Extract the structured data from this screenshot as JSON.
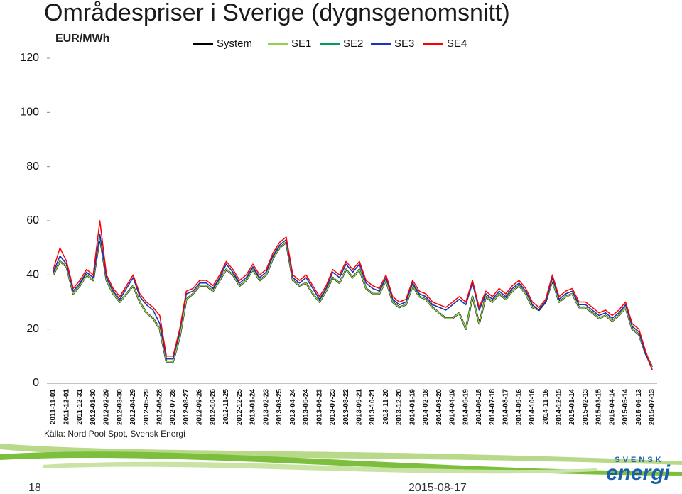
{
  "chart_data": {
    "type": "line",
    "title": "Områdespriser i Sverige (dygnsgenomsnitt)",
    "ylabel": "EUR/MWh",
    "legend": "top",
    "grid": false,
    "ylim": [
      0,
      120
    ],
    "yticks": [
      0,
      20,
      40,
      60,
      80,
      100,
      120
    ],
    "xlim": [
      "2011-11-01",
      "2015-07-13"
    ],
    "xticks": [
      "2011-11-01",
      "2011-12-01",
      "2011-12-31",
      "2012-01-30",
      "2012-02-29",
      "2012-03-30",
      "2012-04-29",
      "2012-05-29",
      "2012-06-28",
      "2012-07-28",
      "2012-08-27",
      "2012-09-26",
      "2012-10-26",
      "2012-11-25",
      "2012-12-25",
      "2013-01-24",
      "2013-02-23",
      "2013-03-25",
      "2013-04-24",
      "2013-05-24",
      "2013-06-23",
      "2013-07-23",
      "2013-08-22",
      "2013-09-21",
      "2013-10-21",
      "2013-11-20",
      "2013-12-20",
      "2014-01-19",
      "2014-02-18",
      "2014-03-20",
      "2014-04-19",
      "2014-05-19",
      "2014-06-18",
      "2014-07-18",
      "2014-08-17",
      "2014-09-16",
      "2014-10-16",
      "2014-11-15",
      "2014-12-15",
      "2015-01-14",
      "2015-02-13",
      "2015-03-15",
      "2015-04-14",
      "2015-05-14",
      "2015-06-13",
      "2015-07-13"
    ],
    "x": [
      "2011-11-01",
      "2011-11-16",
      "2011-12-01",
      "2011-12-16",
      "2011-12-31",
      "2012-01-15",
      "2012-01-30",
      "2012-02-14",
      "2012-02-29",
      "2012-03-15",
      "2012-03-30",
      "2012-04-14",
      "2012-04-29",
      "2012-05-14",
      "2012-05-29",
      "2012-06-13",
      "2012-06-28",
      "2012-07-13",
      "2012-07-28",
      "2012-08-12",
      "2012-08-27",
      "2012-09-11",
      "2012-09-26",
      "2012-10-11",
      "2012-10-26",
      "2012-11-10",
      "2012-11-25",
      "2012-12-10",
      "2012-12-25",
      "2013-01-09",
      "2013-01-24",
      "2013-02-08",
      "2013-02-23",
      "2013-03-10",
      "2013-03-25",
      "2013-04-09",
      "2013-04-24",
      "2013-05-09",
      "2013-05-24",
      "2013-06-08",
      "2013-06-23",
      "2013-07-08",
      "2013-07-23",
      "2013-08-07",
      "2013-08-22",
      "2013-09-06",
      "2013-09-21",
      "2013-10-06",
      "2013-10-21",
      "2013-11-05",
      "2013-11-20",
      "2013-12-05",
      "2013-12-20",
      "2014-01-04",
      "2014-01-19",
      "2014-02-03",
      "2014-02-18",
      "2014-03-05",
      "2014-03-20",
      "2014-04-04",
      "2014-04-19",
      "2014-05-04",
      "2014-05-19",
      "2014-06-03",
      "2014-06-18",
      "2014-07-03",
      "2014-07-18",
      "2014-08-02",
      "2014-08-17",
      "2014-09-01",
      "2014-09-16",
      "2014-10-01",
      "2014-10-16",
      "2014-10-31",
      "2014-11-15",
      "2014-11-30",
      "2014-12-15",
      "2014-12-30",
      "2015-01-14",
      "2015-01-29",
      "2015-02-13",
      "2015-02-28",
      "2015-03-15",
      "2015-03-30",
      "2015-04-14",
      "2015-04-29",
      "2015-05-14",
      "2015-05-29",
      "2015-06-13",
      "2015-06-28",
      "2015-07-13"
    ],
    "series": [
      {
        "name": "System",
        "color": "#000000",
        "values": [
          40,
          45,
          43,
          33,
          36,
          40,
          38,
          54,
          38,
          33,
          30,
          33,
          36,
          30,
          26,
          24,
          20,
          8,
          8,
          17,
          31,
          33,
          36,
          36,
          34,
          38,
          42,
          40,
          36,
          38,
          42,
          38,
          40,
          46,
          50,
          52,
          38,
          36,
          37,
          33,
          30,
          34,
          39,
          37,
          42,
          39,
          42,
          35,
          33,
          33,
          38,
          30,
          28,
          29,
          36,
          32,
          31,
          28,
          26,
          24,
          24,
          26,
          20,
          32,
          22,
          32,
          30,
          33,
          31,
          34,
          36,
          33,
          28,
          27,
          30,
          38,
          30,
          32,
          33,
          28,
          28,
          26,
          24,
          25,
          23,
          25,
          28,
          20,
          18,
          11,
          6
        ]
      },
      {
        "name": "SE1",
        "color": "#92d050",
        "values": [
          40,
          45,
          43,
          33,
          36,
          40,
          38,
          54,
          38,
          33,
          30,
          33,
          36,
          30,
          26,
          24,
          20,
          8,
          8,
          17,
          31,
          33,
          36,
          36,
          34,
          38,
          42,
          40,
          36,
          38,
          42,
          38,
          40,
          46,
          50,
          52,
          38,
          36,
          37,
          33,
          30,
          34,
          39,
          37,
          42,
          39,
          42,
          35,
          33,
          33,
          38,
          30,
          28,
          29,
          36,
          32,
          31,
          28,
          26,
          24,
          24,
          26,
          20,
          32,
          22,
          32,
          30,
          33,
          31,
          34,
          36,
          33,
          28,
          27,
          30,
          38,
          30,
          32,
          33,
          28,
          28,
          26,
          24,
          25,
          23,
          25,
          28,
          20,
          18,
          11,
          6
        ]
      },
      {
        "name": "SE2",
        "color": "#00a050",
        "values": [
          41,
          47,
          44,
          34,
          37,
          41,
          39,
          55,
          39,
          34,
          31,
          35,
          39,
          32,
          29,
          27,
          22,
          9,
          9,
          19,
          33,
          34,
          37,
          37,
          35,
          39,
          44,
          41,
          37,
          39,
          43,
          39,
          41,
          47,
          51,
          53,
          39,
          37,
          39,
          35,
          31,
          35,
          41,
          39,
          44,
          41,
          44,
          37,
          35,
          34,
          39,
          31,
          29,
          30,
          37,
          33,
          32,
          29,
          28,
          27,
          29,
          31,
          29,
          37,
          27,
          33,
          31,
          34,
          32,
          35,
          37,
          34,
          29,
          27,
          30,
          39,
          31,
          33,
          34,
          29,
          29,
          27,
          25,
          26,
          24,
          26,
          29,
          21,
          19,
          11,
          5
        ]
      },
      {
        "name": "SE3",
        "color": "#1f2fbf",
        "values": [
          41,
          47,
          44,
          34,
          37,
          41,
          39,
          55,
          39,
          34,
          31,
          35,
          39,
          32,
          29,
          27,
          22,
          9,
          9,
          19,
          33,
          34,
          37,
          37,
          35,
          39,
          44,
          41,
          37,
          39,
          43,
          39,
          41,
          47,
          51,
          53,
          39,
          37,
          39,
          35,
          31,
          35,
          41,
          39,
          44,
          41,
          44,
          37,
          35,
          34,
          39,
          31,
          29,
          30,
          37,
          33,
          32,
          29,
          28,
          27,
          29,
          31,
          29,
          37,
          27,
          33,
          31,
          34,
          32,
          35,
          37,
          34,
          29,
          27,
          30,
          39,
          31,
          33,
          34,
          29,
          29,
          27,
          25,
          26,
          24,
          26,
          29,
          21,
          19,
          11,
          5
        ]
      },
      {
        "name": "SE4",
        "color": "#ff0000",
        "values": [
          42,
          50,
          45,
          35,
          38,
          42,
          40,
          60,
          40,
          35,
          32,
          36,
          40,
          33,
          30,
          28,
          25,
          10,
          10,
          20,
          34,
          35,
          38,
          38,
          36,
          40,
          45,
          42,
          38,
          40,
          44,
          40,
          42,
          48,
          52,
          54,
          40,
          38,
          40,
          36,
          32,
          36,
          42,
          40,
          45,
          42,
          45,
          38,
          36,
          35,
          40,
          32,
          30,
          31,
          38,
          34,
          33,
          30,
          29,
          28,
          30,
          32,
          30,
          38,
          28,
          34,
          32,
          35,
          33,
          36,
          38,
          35,
          30,
          28,
          31,
          40,
          32,
          34,
          35,
          30,
          30,
          28,
          26,
          27,
          25,
          27,
          30,
          22,
          20,
          12,
          5
        ]
      }
    ]
  },
  "source": "Källa: Nord Pool Spot, Svensk Energi",
  "footer": {
    "page": "18",
    "date": "2015-08-17",
    "logo_top": "SVENSK",
    "logo_main": "energi"
  }
}
